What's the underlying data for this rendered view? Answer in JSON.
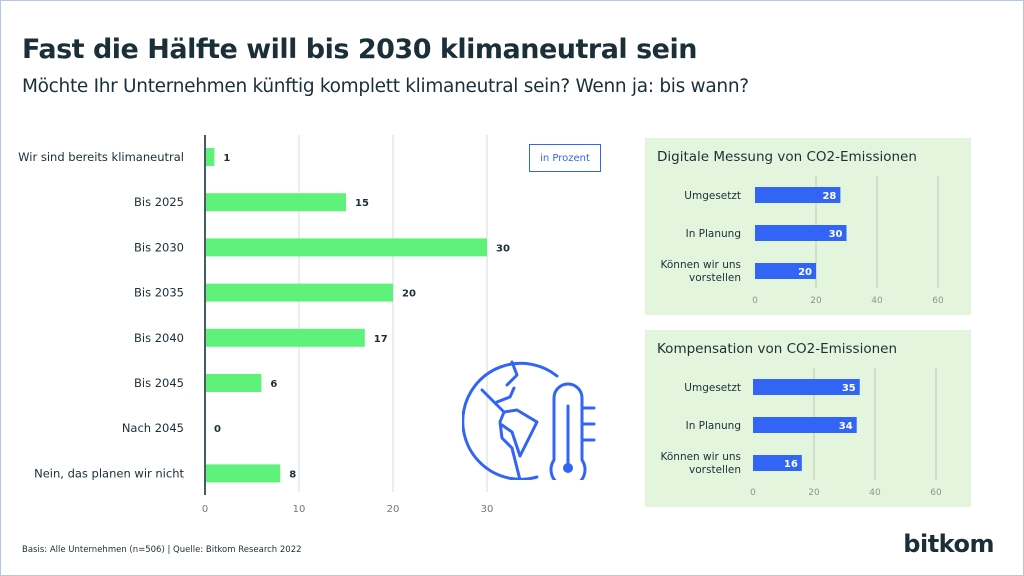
{
  "title": "Fast die Hälfte will bis 2030 klimaneutral sein",
  "subtitle": "Möchte Ihr Unternehmen künftig komplett klimaneutral sein? Wenn ja: bis wann?",
  "unit_label": "in Prozent",
  "footer": "Basis: Alle Unternehmen (n=506) | Quelle: Bitkom Research 2022",
  "logo": "bitkom",
  "icon": "globe-thermometer-icon",
  "colors": {
    "green": "#5ef27a",
    "blue": "#3264f5",
    "panel": "#e3f6dd",
    "text": "#1b2f38"
  },
  "chart_data": [
    {
      "type": "bar",
      "orientation": "horizontal",
      "categories": [
        "Wir sind bereits klimaneutral",
        "Bis 2025",
        "Bis 2030",
        "Bis 2035",
        "Bis 2040",
        "Bis 2045",
        "Nach 2045",
        "Nein, das planen wir nicht"
      ],
      "values": [
        1,
        15,
        30,
        20,
        17,
        6,
        0,
        8
      ],
      "xlim": [
        0,
        30
      ],
      "xticks": [
        0,
        10,
        20,
        30
      ],
      "grid": true,
      "color": "#5ef27a"
    },
    {
      "type": "bar",
      "orientation": "horizontal",
      "title": "Digitale Messung von CO2-Emissionen",
      "categories": [
        "Umgesetzt",
        "In Planung",
        "Können wir uns vorstellen"
      ],
      "values": [
        28,
        30,
        20
      ],
      "xlim": [
        0,
        60
      ],
      "xticks": [
        0,
        20,
        40,
        60
      ],
      "grid": true,
      "color": "#3264f5"
    },
    {
      "type": "bar",
      "orientation": "horizontal",
      "title": "Kompensation von CO2-Emissionen",
      "categories": [
        "Umgesetzt",
        "In Planung",
        "Können wir uns vorstellen"
      ],
      "values": [
        35,
        34,
        16
      ],
      "xlim": [
        0,
        60
      ],
      "xticks": [
        0,
        20,
        40,
        60
      ],
      "grid": true,
      "color": "#3264f5"
    }
  ]
}
